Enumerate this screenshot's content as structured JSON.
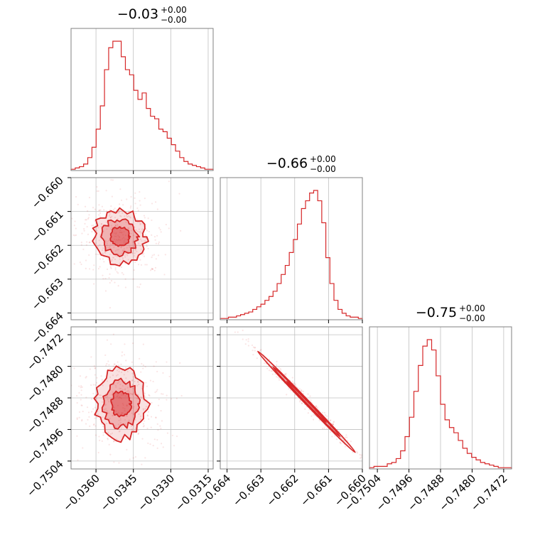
{
  "colors": {
    "accent": "#d62728",
    "grid": "#c0c0c0",
    "frame": "#808080"
  },
  "chart_data": {
    "type": "corner",
    "parameters": [
      {
        "title": {
          "value": "−0.03",
          "plus": "+0.00",
          "minus": "−0.00"
        },
        "range": [
          -0.037,
          -0.0313
        ],
        "ticks": [
          -0.036,
          -0.0345,
          -0.033,
          -0.0315
        ],
        "tick_labels": [
          "−0.0360",
          "−0.0345",
          "−0.0330",
          "−0.0315"
        ],
        "histogram": [
          1,
          2,
          3,
          5,
          10,
          18,
          32,
          50,
          78,
          95,
          100,
          100,
          88,
          78,
          74,
          62,
          55,
          60,
          48,
          42,
          40,
          32,
          30,
          25,
          20,
          15,
          10,
          7,
          5,
          4,
          3,
          2,
          1,
          1
        ]
      },
      {
        "title": {
          "value": "−0.66",
          "plus": "+0.00",
          "minus": "−0.00"
        },
        "range": [
          -0.6642,
          -0.66
        ],
        "ticks": [
          -0.664,
          -0.663,
          -0.662,
          -0.661,
          -0.66
        ],
        "tick_labels": [
          "−0.664",
          "−0.663",
          "−0.662",
          "−0.661",
          "−0.660"
        ],
        "histogram": [
          1,
          1,
          2,
          2,
          3,
          4,
          5,
          6,
          8,
          10,
          12,
          15,
          18,
          22,
          28,
          35,
          42,
          52,
          62,
          74,
          86,
          92,
          98,
          100,
          92,
          75,
          48,
          28,
          15,
          8,
          5,
          3,
          2,
          2,
          1
        ]
      },
      {
        "title": {
          "value": "−0.75",
          "plus": "+0.00",
          "minus": "−0.00"
        },
        "range": [
          -0.7506,
          -0.747
        ],
        "ticks": [
          -0.7504,
          -0.7496,
          -0.7488,
          -0.748,
          -0.7472
        ],
        "tick_labels": [
          "−0.7504",
          "−0.7496",
          "−0.7488",
          "−0.7480",
          "−0.7472"
        ],
        "histogram": [
          1,
          2,
          2,
          2,
          4,
          5,
          8,
          14,
          25,
          40,
          60,
          80,
          95,
          100,
          92,
          72,
          50,
          38,
          32,
          28,
          22,
          16,
          12,
          9,
          7,
          5,
          4,
          3,
          2,
          1,
          1,
          1
        ]
      }
    ],
    "pairs": [
      {
        "x": 0,
        "y": 1,
        "center": [
          -0.03505,
          -0.66175
        ],
        "spread": [
          0.00055,
          0.0004
        ],
        "correlation": 0.0
      },
      {
        "x": 0,
        "y": 2,
        "center": [
          -0.035,
          -0.74895
        ],
        "spread": [
          0.00055,
          0.00045
        ],
        "correlation": 0.0
      },
      {
        "x": 1,
        "y": 2,
        "center": [
          -0.66165,
          -0.7489
        ],
        "spread": [
          0.00045,
          0.0004
        ],
        "correlation": -0.99
      }
    ],
    "grid": true
  }
}
